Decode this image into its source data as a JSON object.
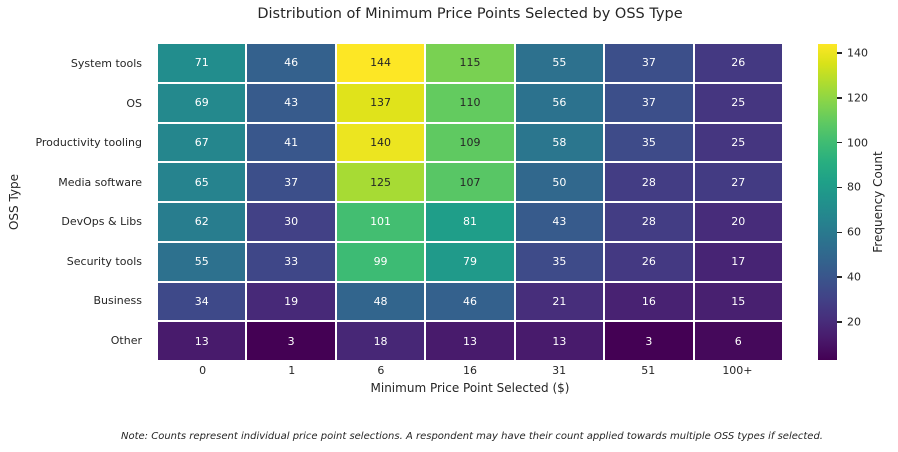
{
  "note": "Note: Counts represent individual price point selections. A respondent may have their count applied towards multiple OSS types if selected.",
  "colors": {
    "background": "#ffffff",
    "text_dark": "#262626",
    "annot_light": "#ffffff",
    "grid_line": "#ffffff",
    "viridis_anchors": [
      "#440154",
      "#48186a",
      "#472d7b",
      "#424086",
      "#3b528b",
      "#33638d",
      "#2c728e",
      "#26828e",
      "#21918c",
      "#1fa088",
      "#28ae80",
      "#3fbc73",
      "#5ec962",
      "#84d44b",
      "#addc30",
      "#d8e219",
      "#fde725"
    ]
  },
  "chart_data": {
    "type": "heatmap",
    "title": "Distribution of Minimum Price Points Selected by OSS Type",
    "xlabel": "Minimum Price Point Selected ($)",
    "ylabel": "OSS Type",
    "x_categories": [
      "0",
      "1",
      "6",
      "16",
      "31",
      "51",
      "100+"
    ],
    "y_categories": [
      "System tools",
      "OS",
      "Productivity tooling",
      "Media software",
      "DevOps & Libs",
      "Security tools",
      "Business",
      "Other"
    ],
    "values": [
      [
        71,
        46,
        144,
        115,
        55,
        37,
        26
      ],
      [
        69,
        43,
        137,
        110,
        56,
        37,
        25
      ],
      [
        67,
        41,
        140,
        109,
        58,
        35,
        25
      ],
      [
        65,
        37,
        125,
        107,
        50,
        28,
        27
      ],
      [
        62,
        30,
        101,
        81,
        43,
        28,
        20
      ],
      [
        55,
        33,
        99,
        79,
        35,
        26,
        17
      ],
      [
        34,
        19,
        48,
        46,
        21,
        16,
        15
      ],
      [
        13,
        3,
        18,
        13,
        13,
        3,
        6
      ]
    ],
    "colormap": "viridis",
    "vmin": 3,
    "vmax": 144,
    "annotated": true,
    "grid": false,
    "colorbar": {
      "label": "Frequency Count",
      "ticks": [
        20,
        40,
        60,
        80,
        100,
        120,
        140
      ]
    }
  }
}
